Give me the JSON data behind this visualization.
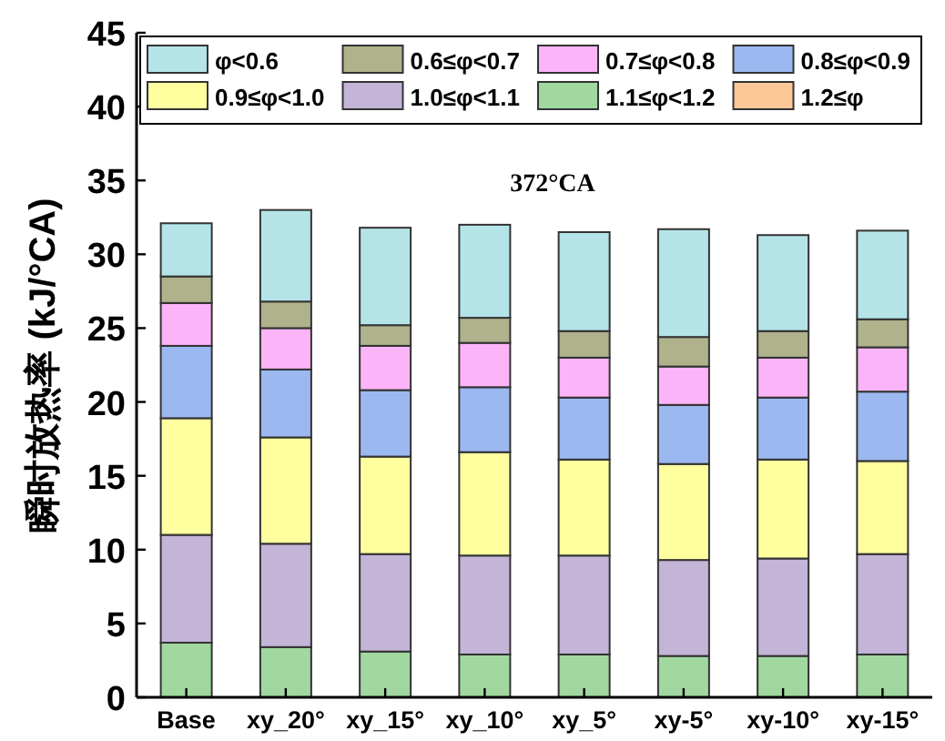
{
  "chart_data": {
    "type": "bar",
    "stacked": true,
    "ylabel": "瞬时放热率 (kJ/°CA)",
    "annotations": [
      "372°CA"
    ],
    "categories": [
      "Base",
      "xy_20°",
      "xy_15°",
      "xy_10°",
      "xy_5°",
      "xy-5°",
      "xy-10°",
      "xy-15°"
    ],
    "ylim": [
      0,
      45
    ],
    "yticks": [
      0,
      5,
      10,
      15,
      20,
      25,
      30,
      35,
      40,
      45
    ],
    "legend": "top",
    "grid": false,
    "series": [
      {
        "name": "1.2≤φ",
        "color": "#fcc898",
        "values": [
          0,
          0,
          0,
          0,
          0,
          0,
          0,
          0
        ]
      },
      {
        "name": "1.1≤φ<1.2",
        "color": "#a0d8a0",
        "values": [
          3.7,
          3.4,
          3.1,
          2.9,
          2.9,
          2.8,
          2.8,
          2.9
        ]
      },
      {
        "name": "1.0≤φ<1.1",
        "color": "#c4b4d8",
        "values": [
          7.3,
          7.0,
          6.6,
          6.7,
          6.7,
          6.5,
          6.6,
          6.8
        ]
      },
      {
        "name": "0.9≤φ<1.0",
        "color": "#ffffa0",
        "values": [
          7.9,
          7.2,
          6.6,
          7.0,
          6.5,
          6.5,
          6.7,
          6.3
        ]
      },
      {
        "name": "0.8≤φ<0.9",
        "color": "#9cb8f0",
        "values": [
          4.9,
          4.6,
          4.5,
          4.4,
          4.2,
          4.0,
          4.2,
          4.7
        ]
      },
      {
        "name": "0.7≤φ<0.8",
        "color": "#fcb4f8",
        "values": [
          2.9,
          2.8,
          3.0,
          3.0,
          2.7,
          2.6,
          2.7,
          3.0
        ]
      },
      {
        "name": "0.6≤φ<0.7",
        "color": "#b0b28c",
        "values": [
          1.8,
          1.8,
          1.4,
          1.7,
          1.8,
          2.0,
          1.8,
          1.9
        ]
      },
      {
        "name": "φ<0.6",
        "color": "#b4e4e8",
        "values": [
          3.6,
          6.2,
          6.6,
          6.3,
          6.7,
          7.3,
          6.5,
          6.0
        ]
      }
    ]
  }
}
